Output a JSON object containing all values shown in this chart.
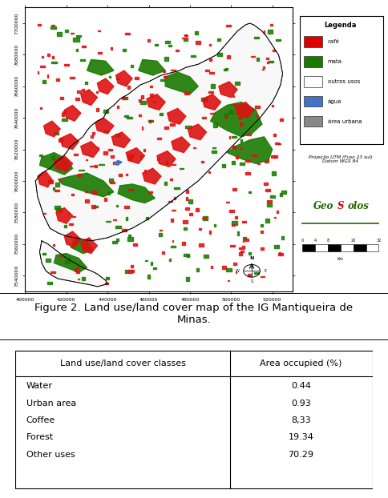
{
  "figure_caption_line1": "Figure 2. Land use/land cover map of the IG Mantiqueira de",
  "figure_caption_line2": "Minas.",
  "table_headers": [
    "Land use/land cover classes",
    "Area occupied (%)"
  ],
  "table_rows": [
    [
      "Water",
      "0.44"
    ],
    [
      "Urban area",
      "0.93"
    ],
    [
      "Coffee",
      "8,33"
    ],
    [
      "Forest",
      "19.34"
    ],
    [
      "Other uses",
      "70.29"
    ]
  ],
  "bg_color": "#ffffff",
  "fig_width": 4.84,
  "fig_height": 6.22,
  "dpi": 100,
  "legend_items": [
    {
      "label": "café",
      "color": "#dd0000",
      "edge": "#333333"
    },
    {
      "label": "mata",
      "color": "#1a7a00",
      "edge": "#333333"
    },
    {
      "label": "outros usos",
      "color": "#ffffff",
      "edge": "#333333"
    },
    {
      "label": "água",
      "color": "#4472c4",
      "edge": "#333333"
    },
    {
      "label": "área urbana",
      "color": "#888888",
      "edge": "#333333"
    }
  ],
  "projection_text": "Projeção UTM (Fuso 23 sul)\nDatum WGS 84",
  "x_tick_labels": [
    "400000",
    "420000",
    "440000",
    "460000",
    "480000",
    "500000",
    "520000"
  ],
  "y_tick_labels_left": [
    "7700000",
    "7680000",
    "7660000",
    "7640000",
    "7620000",
    "7600000",
    "7580000",
    "7560000",
    "7540000"
  ],
  "map_border_color": "#000000",
  "map_inner_bg": "#ffffff",
  "outer_bg": "#ffffff"
}
